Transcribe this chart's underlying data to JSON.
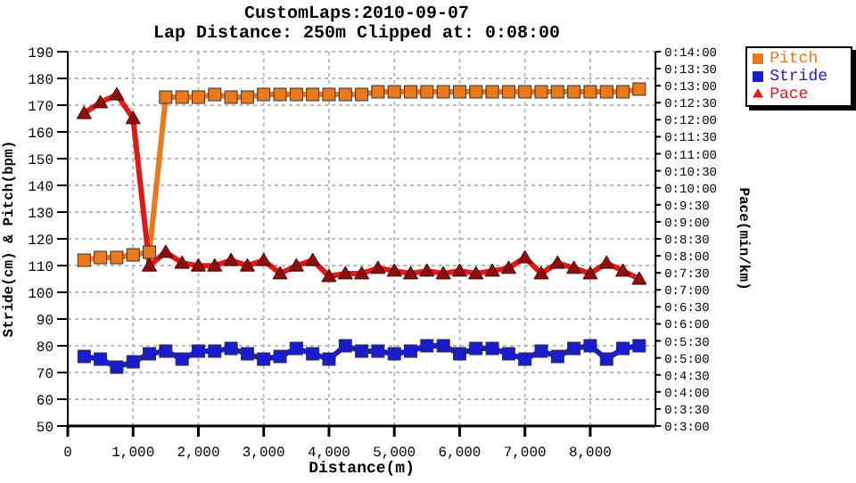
{
  "chart_data": {
    "type": "line",
    "title": "CustomLaps:2010-09-07",
    "subtitle": "Lap Distance: 250m Clipped at: 0:08:00",
    "xlabel": "Distance(m)",
    "ylabel": "Stride(cm) & Pitch(bpm)",
    "y2label": "Pace(min/km)",
    "x": [
      250,
      500,
      750,
      1000,
      1250,
      1500,
      1750,
      2000,
      2250,
      2500,
      2750,
      3000,
      3250,
      3500,
      3750,
      4000,
      4250,
      4500,
      4750,
      5000,
      5250,
      5500,
      5750,
      6000,
      6250,
      6500,
      6750,
      7000,
      7250,
      7500,
      7750,
      8000,
      8250,
      8500,
      8750
    ],
    "series": [
      {
        "name": "Pitch",
        "color": "#e87a1c",
        "marker": "square",
        "values": [
          112,
          113,
          113,
          114,
          115,
          173,
          173,
          173,
          174,
          173,
          173,
          174,
          174,
          174,
          174,
          174,
          174,
          174,
          175,
          175,
          175,
          175,
          175,
          175,
          175,
          175,
          175,
          175,
          175,
          175,
          175,
          175,
          175,
          175,
          176
        ]
      },
      {
        "name": "Stride",
        "color": "#1a1ad0",
        "marker": "square",
        "values": [
          76,
          75,
          72,
          74,
          77,
          78,
          75,
          78,
          78,
          79,
          77,
          75,
          76,
          79,
          77,
          75,
          80,
          78,
          78,
          77,
          78,
          80,
          80,
          77,
          79,
          79,
          77,
          75,
          78,
          76,
          79,
          80,
          75,
          79,
          80
        ]
      },
      {
        "name": "Pace",
        "color": "#e01818",
        "marker": "triangle",
        "axis": "y2",
        "values": [
          12.19,
          12.51,
          12.74,
          12.04,
          7.71,
          8.11,
          7.79,
          7.71,
          7.71,
          7.87,
          7.71,
          7.87,
          7.48,
          7.71,
          7.87,
          7.4,
          7.48,
          7.48,
          7.64,
          7.56,
          7.48,
          7.56,
          7.48,
          7.56,
          7.48,
          7.56,
          7.64,
          7.95,
          7.48,
          7.79,
          7.64,
          7.48,
          7.79,
          7.56,
          7.32
        ]
      }
    ],
    "xlim": [
      0,
      9000
    ],
    "xticks": [
      0,
      {
        "value": 1000,
        "label": "1,000"
      },
      {
        "value": 2000,
        "label": "2,000"
      },
      {
        "value": 3000,
        "label": "3,000"
      },
      {
        "value": 4000,
        "label": "4,000"
      },
      {
        "value": 5000,
        "label": "5,000"
      },
      {
        "value": 6000,
        "label": "6,000"
      },
      {
        "value": 7000,
        "label": "7,000"
      },
      {
        "value": 8000,
        "label": "8,000"
      }
    ],
    "ylim": [
      50,
      190
    ],
    "yticks": [
      50,
      60,
      70,
      80,
      90,
      100,
      110,
      120,
      130,
      140,
      150,
      160,
      170,
      180,
      190
    ],
    "y2lim": [
      3,
      14
    ],
    "y2ticks": [
      {
        "value": 3,
        "label": "0:3:00"
      },
      {
        "value": 3.5,
        "label": "0:3:30"
      },
      {
        "value": 4,
        "label": "0:4:00"
      },
      {
        "value": 4.5,
        "label": "0:4:30"
      },
      {
        "value": 5,
        "label": "0:5:00"
      },
      {
        "value": 5.5,
        "label": "0:5:30"
      },
      {
        "value": 6,
        "label": "0:6:00"
      },
      {
        "value": 6.5,
        "label": "0:6:30"
      },
      {
        "value": 7,
        "label": "0:7:00"
      },
      {
        "value": 7.5,
        "label": "0:7:30"
      },
      {
        "value": 8,
        "label": "0:8:00"
      },
      {
        "value": 8.5,
        "label": "0:8:30"
      },
      {
        "value": 9,
        "label": "0:9:00"
      },
      {
        "value": 9.5,
        "label": "0:9:30"
      },
      {
        "value": 10,
        "label": "0:10:00"
      },
      {
        "value": 10.5,
        "label": "0:10:30"
      },
      {
        "value": 11,
        "label": "0:11:00"
      },
      {
        "value": 11.5,
        "label": "0:11:30"
      },
      {
        "value": 12,
        "label": "0:12:00"
      },
      {
        "value": 12.5,
        "label": "0:12:30"
      },
      {
        "value": 13,
        "label": "0:13:00"
      },
      {
        "value": 13.5,
        "label": "0:13:30"
      },
      {
        "value": 14,
        "label": "0:14:00"
      }
    ],
    "grid": true,
    "legend": "top right"
  }
}
